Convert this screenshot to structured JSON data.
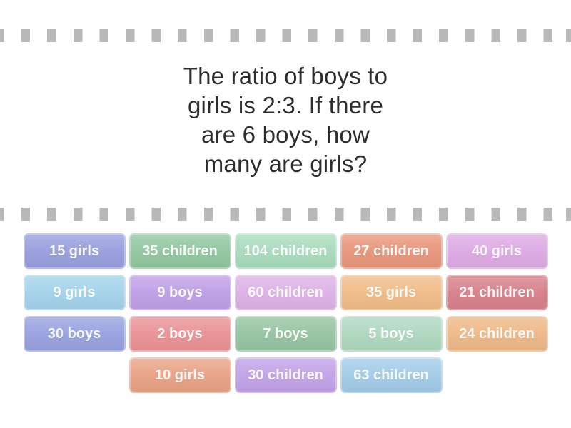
{
  "question": {
    "text": "The ratio of boys to girls is 2:3. If there are 6 boys, how many are girls?",
    "lines": [
      "The ratio of boys to",
      "girls is 2:3. If there",
      "are 6 boys, how",
      "many are girls?"
    ]
  },
  "answers": {
    "rows": [
      [
        {
          "label": "15 girls",
          "color": "#99a0de"
        },
        {
          "label": "35 children",
          "color": "#93c7a1"
        },
        {
          "label": "104 children",
          "color": "#aadcbe"
        },
        {
          "label": "27 children",
          "color": "#e9977d"
        },
        {
          "label": "40 girls",
          "color": "#ddabe4"
        }
      ],
      [
        {
          "label": "9 girls",
          "color": "#a5d3eb"
        },
        {
          "label": "9 boys",
          "color": "#bfa0e6"
        },
        {
          "label": "60 children",
          "color": "#ddb3e6"
        },
        {
          "label": "35 girls",
          "color": "#f0bd89"
        },
        {
          "label": "21 children",
          "color": "#d8828c"
        }
      ],
      [
        {
          "label": "30 boys",
          "color": "#99a3e0"
        },
        {
          "label": "2 boys",
          "color": "#ea9397"
        },
        {
          "label": "7 boys",
          "color": "#96c5a2"
        },
        {
          "label": "5 boys",
          "color": "#b0d8bf"
        },
        {
          "label": "24 children",
          "color": "#eeb989"
        }
      ],
      [
        {
          "label": "10 girls",
          "color": "#e9a387"
        },
        {
          "label": "30 children",
          "color": "#c2a3e8"
        },
        {
          "label": "63 children",
          "color": "#a3cce8"
        }
      ]
    ]
  },
  "decor": {
    "dash_color": "#b9b9b9",
    "background_color": "#ffffff",
    "question_text_color": "#2d2d2d",
    "tile_text_color": "#ffffff"
  }
}
